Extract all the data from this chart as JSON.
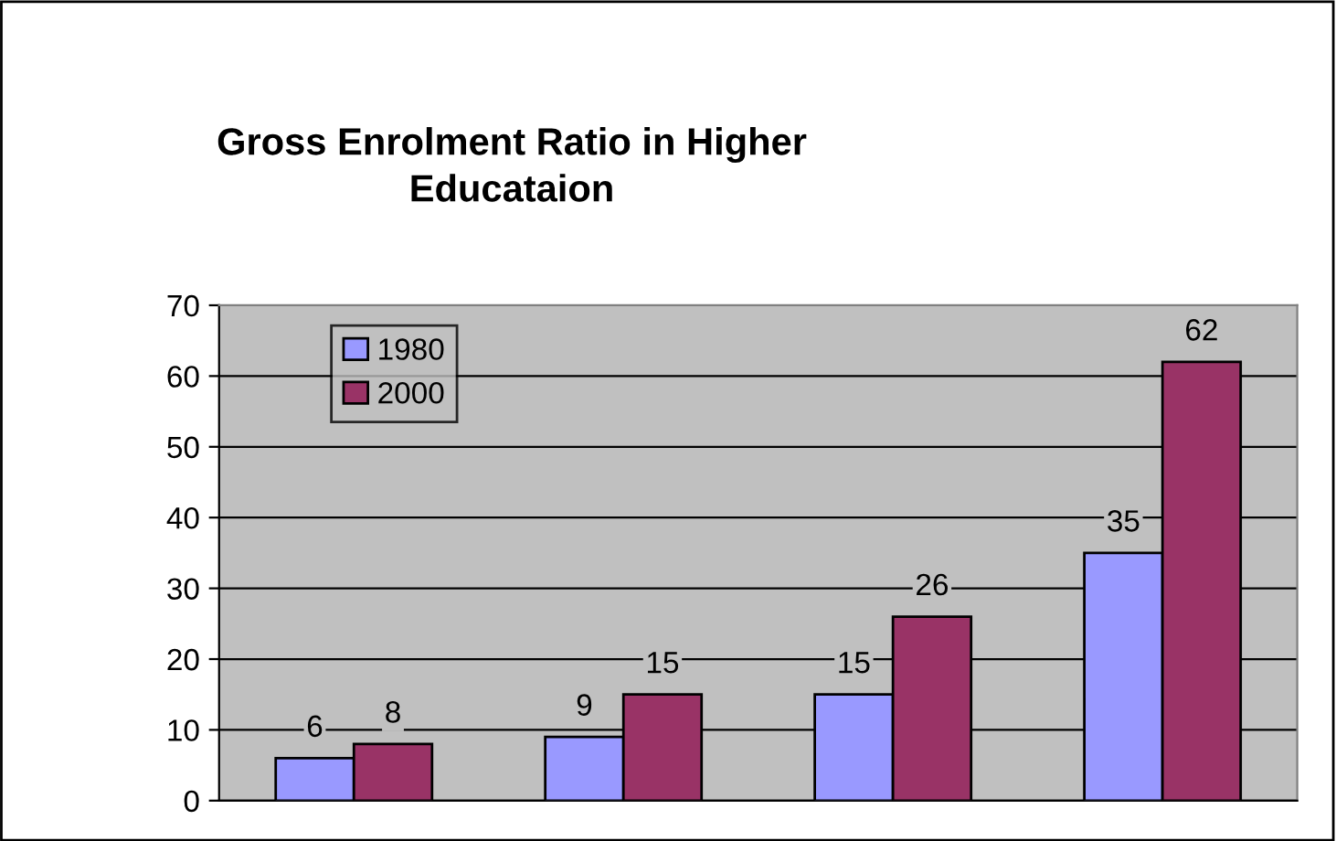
{
  "chart_data": {
    "type": "bar",
    "title": "Gross Enrolment Ratio in Higher\nEducataion",
    "categories": [
      null,
      null,
      null,
      null
    ],
    "series": [
      {
        "name": "1980",
        "color": "#9999ff",
        "values": [
          6,
          9,
          15,
          35
        ]
      },
      {
        "name": "2000",
        "color": "#993366",
        "values": [
          8,
          15,
          26,
          62
        ]
      }
    ],
    "ylim": [
      0,
      70
    ],
    "yticks": [
      0,
      10,
      20,
      30,
      40,
      50,
      60,
      70
    ],
    "grid": "y",
    "legend": "top left",
    "data_labels": true
  }
}
